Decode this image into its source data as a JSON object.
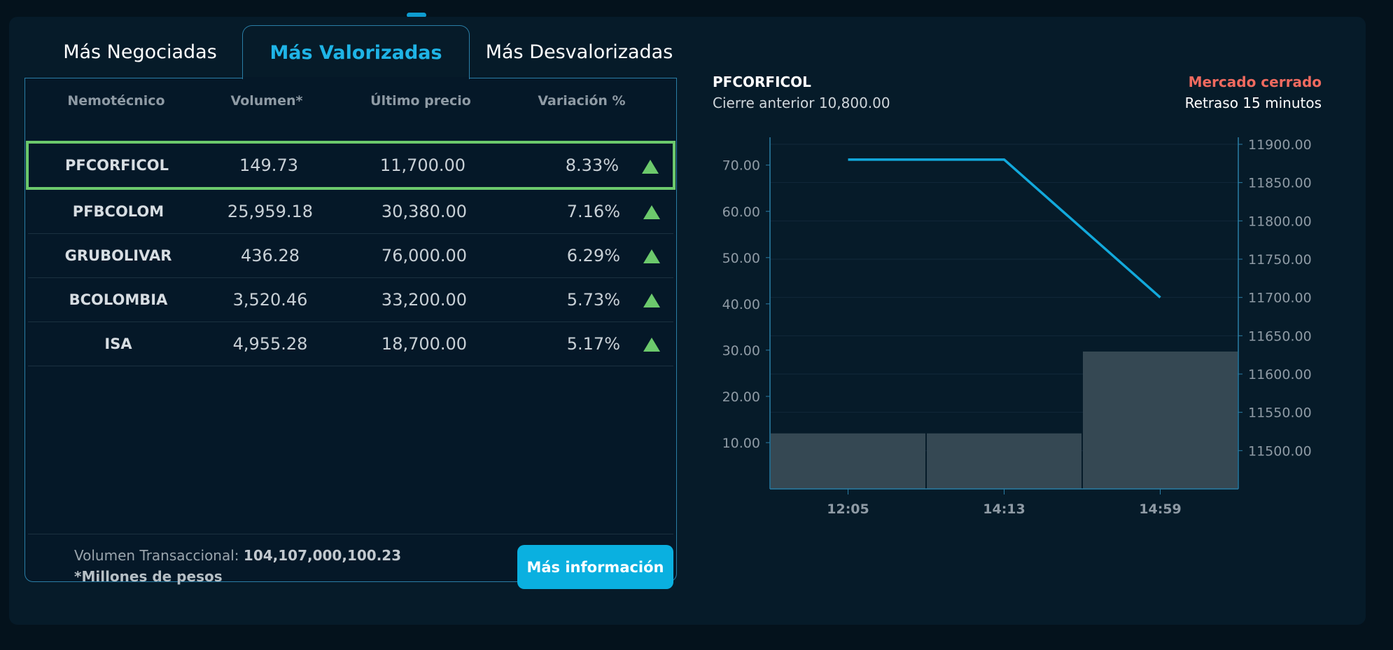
{
  "tabs": [
    "Más Negociadas",
    "Más Valorizadas",
    "Más Desvalorizadas"
  ],
  "table": {
    "headers": [
      "Nemotécnico",
      "Volumen*",
      "Último precio",
      "Variación %"
    ],
    "rows": [
      {
        "symbol": "PFCORFICOL",
        "volume": "149.73",
        "price": "11,700.00",
        "change": "8.33%"
      },
      {
        "symbol": "PFBCOLOM",
        "volume": "25,959.18",
        "price": "30,380.00",
        "change": "7.16%"
      },
      {
        "symbol": "GRUBOLIVAR",
        "volume": "436.28",
        "price": "76,000.00",
        "change": "6.29%"
      },
      {
        "symbol": "BCOLOMBIA",
        "volume": "3,520.46",
        "price": "33,200.00",
        "change": "5.73%"
      },
      {
        "symbol": "ISA",
        "volume": "4,955.28",
        "price": "18,700.00",
        "change": "5.17%"
      }
    ],
    "selected_row": 0,
    "trend_icon": "up-triangle-icon",
    "colors": {
      "up": "#6cc96c",
      "accent": "#1fb4e6",
      "button": "#0ab0e0",
      "closed": "#ef6a5f"
    }
  },
  "footer": {
    "volume_label": "Volumen Transaccional:",
    "volume_value": "104,107,000,100.23",
    "note": "*Millones de pesos",
    "button_label": "Más información"
  },
  "detail": {
    "symbol": "PFCORFICOL",
    "prev_close": "Cierre anterior 10,800.00",
    "market_status": "Mercado cerrado",
    "delay": "Retraso 15 minutos"
  },
  "chart_data": {
    "type": "bar",
    "x": [
      "12:05",
      "14:13",
      "14:59"
    ],
    "volume_values": [
      12,
      12,
      29.7
    ],
    "price_values": [
      11880,
      11880,
      11700
    ],
    "y_left": {
      "ticks": [
        "10.00",
        "20.00",
        "30.00",
        "40.00",
        "50.00",
        "60.00",
        "70.00"
      ],
      "range": [
        0,
        74.5
      ]
    },
    "y_right": {
      "ticks": [
        "11500.00",
        "11550.00",
        "11600.00",
        "11650.00",
        "11700.00",
        "11750.00",
        "11800.00",
        "11850.00",
        "11900.00"
      ],
      "range": [
        11450,
        11900
      ]
    },
    "grid": true,
    "legend": "none"
  }
}
